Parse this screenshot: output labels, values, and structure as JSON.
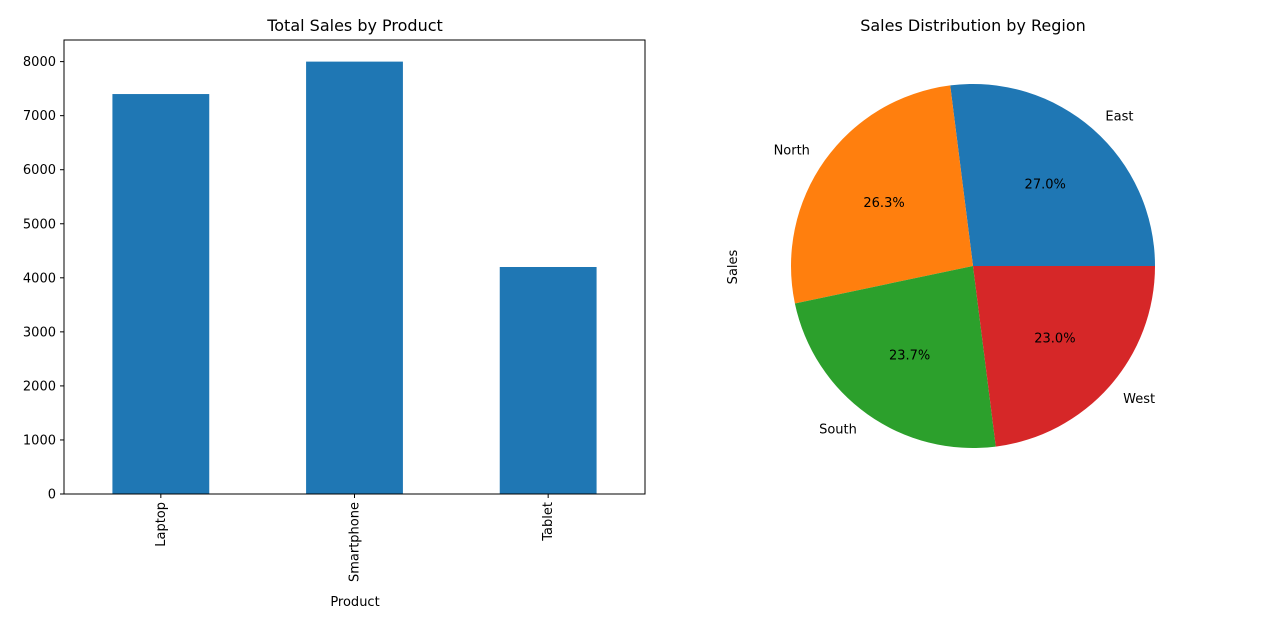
{
  "chart_data": [
    {
      "type": "bar",
      "title": "Total Sales by Product",
      "xlabel": "Product",
      "ylabel": "",
      "categories": [
        "Laptop",
        "Smartphone",
        "Tablet"
      ],
      "values": [
        7400,
        8000,
        4200
      ],
      "ylim": [
        0,
        8400
      ],
      "yticks": [
        0,
        1000,
        2000,
        3000,
        4000,
        5000,
        6000,
        7000,
        8000
      ],
      "grid": false,
      "color": "#1f77b4"
    },
    {
      "type": "pie",
      "title": "Sales Distribution by Region",
      "ylabel": "Sales",
      "labels": [
        "East",
        "North",
        "South",
        "West"
      ],
      "values": [
        27.0,
        26.3,
        23.7,
        23.0
      ],
      "percent_labels": [
        "27.0%",
        "26.3%",
        "23.7%",
        "23.0%"
      ],
      "colors": [
        "#1f77b4",
        "#ff7f0e",
        "#2ca02c",
        "#d62728"
      ]
    }
  ]
}
